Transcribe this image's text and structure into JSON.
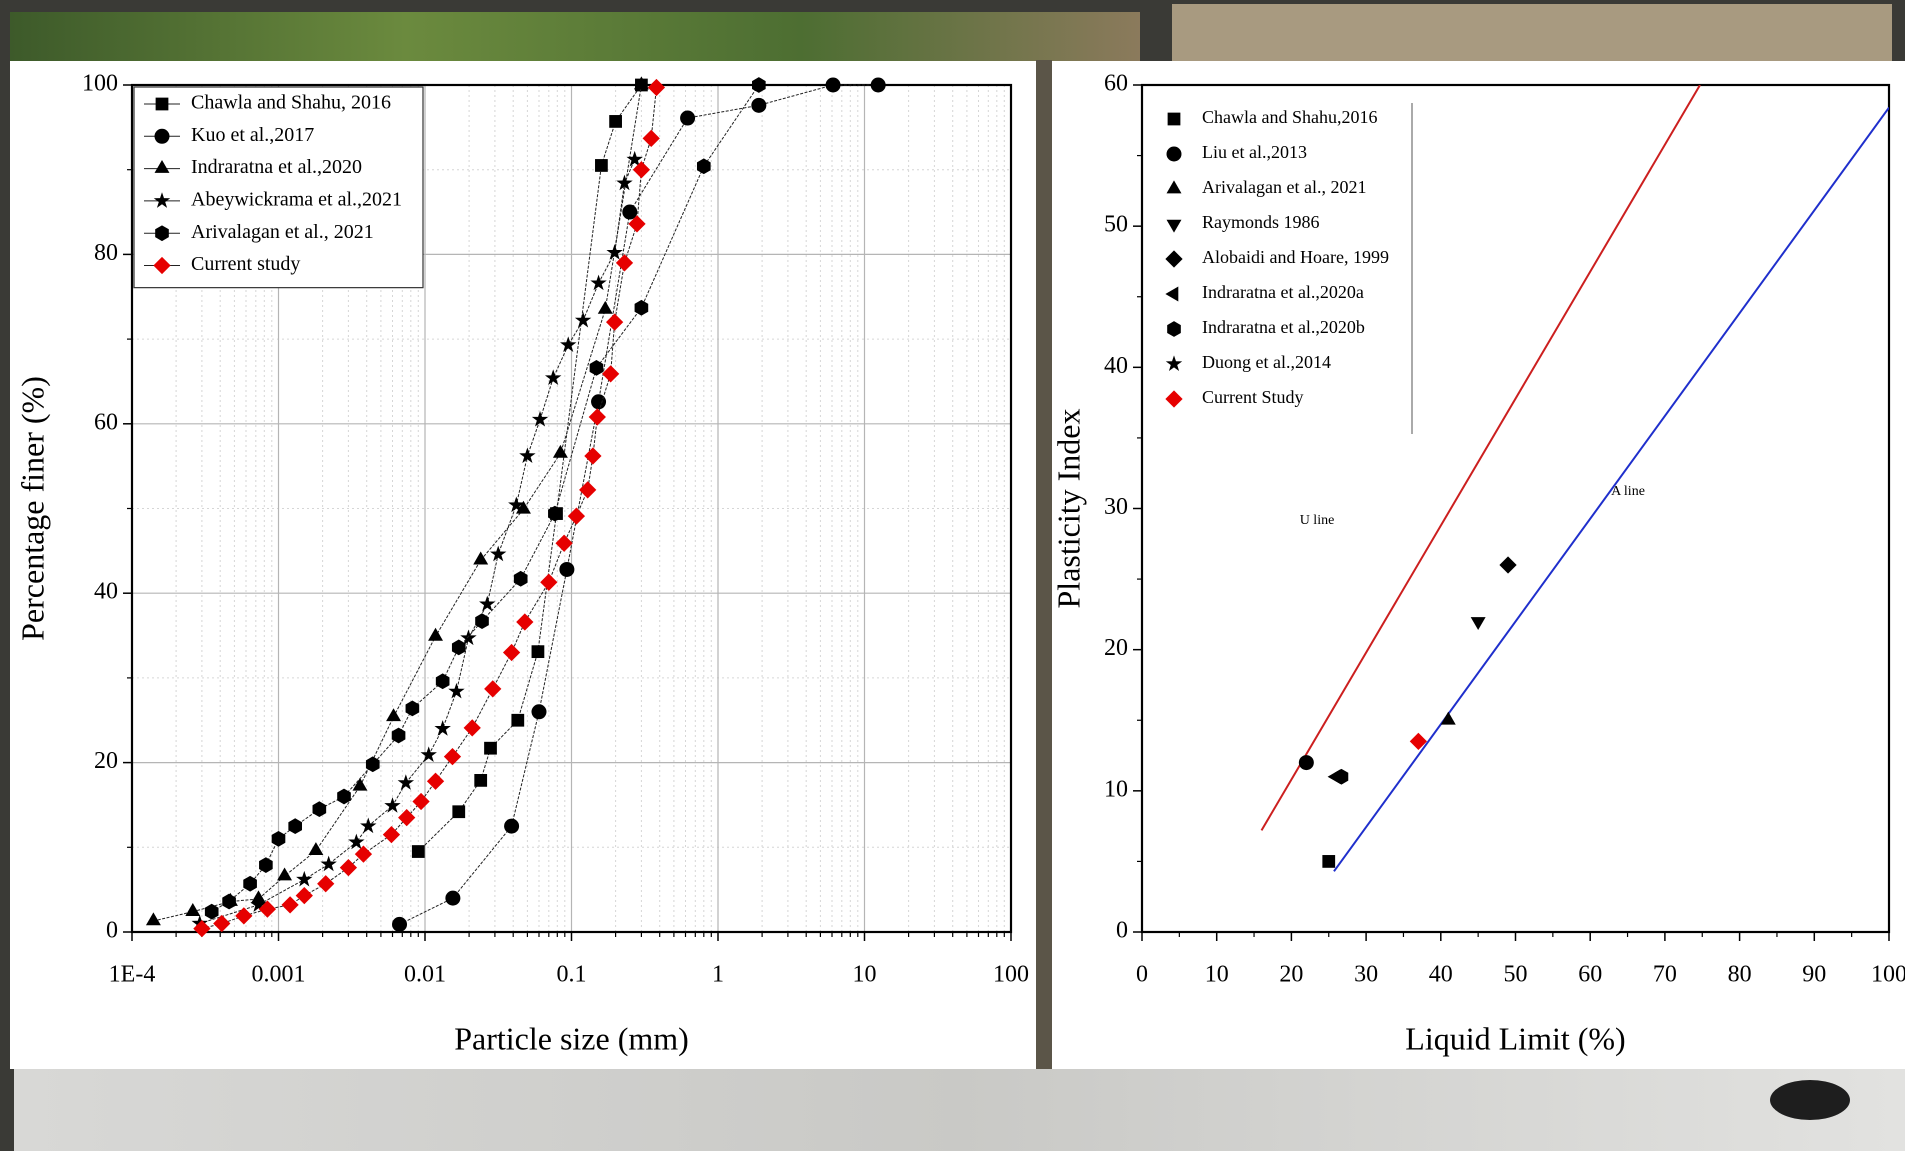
{
  "chart_data": [
    {
      "type": "line",
      "xscale": "log",
      "xlabel": "Particle size (mm)",
      "ylabel": "Percentage finer (%)",
      "xlim": [
        0.0001,
        100
      ],
      "ylim": [
        0,
        100
      ],
      "xticks": [
        {
          "value": 0.0001,
          "label": "1E-4"
        },
        0.001,
        0.01,
        0.1,
        1,
        10,
        100
      ],
      "yticks": [
        0,
        20,
        40,
        60,
        80,
        100
      ],
      "grid": true,
      "legend": "upper left",
      "legend_frame": true,
      "series": [
        {
          "name": "Chawla and Shahu, 2016",
          "marker": "square",
          "color": "#000000",
          "x": [
            0.009,
            0.017,
            0.024,
            0.028,
            0.043,
            0.059,
            0.079,
            0.16,
            0.2,
            0.3
          ],
          "values": [
            9.5,
            14.2,
            17.9,
            21.7,
            25,
            33.1,
            49.4,
            90.5,
            95.7,
            100
          ]
        },
        {
          "name": "Kuo et al.,2017",
          "marker": "circle",
          "color": "#000000",
          "x": [
            0.0067,
            0.0155,
            0.039,
            0.06,
            0.093,
            0.153,
            0.25,
            0.62,
            1.9,
            6.1,
            12.4
          ],
          "values": [
            0.9,
            4,
            12.5,
            26,
            42.8,
            62.6,
            85,
            96.1,
            97.6,
            100,
            100
          ]
        },
        {
          "name": "Indraratna et al.,2020",
          "marker": "triangle",
          "color": "#000000",
          "x": [
            0.00014,
            0.00026,
            0.00047,
            0.00073,
            0.0011,
            0.0018,
            0.0036,
            0.0061,
            0.0118,
            0.024,
            0.047,
            0.084,
            0.17,
            0.3
          ],
          "values": [
            1.3,
            2.4,
            3.6,
            3.9,
            6.6,
            9.6,
            17.2,
            25.4,
            34.9,
            43.9,
            49.9,
            56.5,
            73.5,
            100
          ]
        },
        {
          "name": "Abeywickrama et al.,2021",
          "marker": "star",
          "color": "#000000",
          "x": [
            0.00029,
            0.00073,
            0.0015,
            0.0022,
            0.0034,
            0.0041,
            0.006,
            0.0074,
            0.0106,
            0.0132,
            0.0164,
            0.0198,
            0.0266,
            0.0316,
            0.042,
            0.05,
            0.061,
            0.075,
            0.095,
            0.12,
            0.153,
            0.197,
            0.23,
            0.27
          ],
          "values": [
            1,
            3.2,
            6.2,
            8,
            10.6,
            12.5,
            14.9,
            17.6,
            20.9,
            24,
            28.4,
            34.7,
            38.7,
            44.6,
            50.4,
            56.2,
            60.5,
            65.4,
            69.3,
            72.2,
            76.6,
            80.2,
            88.4,
            91.2
          ]
        },
        {
          "name": "Arivalagan et al., 2021",
          "marker": "hexagon",
          "color": "#000000",
          "x": [
            0.00035,
            0.00046,
            0.00064,
            0.00082,
            0.001,
            0.0013,
            0.0019,
            0.0028,
            0.0044,
            0.0066,
            0.0082,
            0.0132,
            0.017,
            0.0245,
            0.045,
            0.077,
            0.148,
            0.3,
            0.8,
            1.9
          ],
          "values": [
            2.4,
            3.6,
            5.7,
            7.9,
            11,
            12.5,
            14.5,
            16,
            19.8,
            23.2,
            26.4,
            29.6,
            33.6,
            36.7,
            41.7,
            49.4,
            66.6,
            73.7,
            90.4,
            100
          ]
        },
        {
          "name": "Current study",
          "marker": "diamond",
          "color": "#e60000",
          "x": [
            0.0003,
            0.00041,
            0.00058,
            0.00084,
            0.0012,
            0.0015,
            0.0021,
            0.003,
            0.0038,
            0.0059,
            0.0075,
            0.0094,
            0.0118,
            0.0154,
            0.021,
            0.029,
            0.039,
            0.048,
            0.07,
            0.089,
            0.108,
            0.129,
            0.14,
            0.15,
            0.185,
            0.197,
            0.23,
            0.28,
            0.3,
            0.35,
            0.38
          ],
          "values": [
            0.4,
            1,
            1.9,
            2.7,
            3.2,
            4.3,
            5.7,
            7.6,
            9.2,
            11.5,
            13.5,
            15.4,
            17.8,
            20.7,
            24.1,
            28.7,
            33,
            36.6,
            41.3,
            45.9,
            49.1,
            52.2,
            56.2,
            60.8,
            65.9,
            72,
            79,
            83.6,
            90,
            93.7,
            99.7
          ]
        }
      ]
    },
    {
      "type": "scatter",
      "xlabel": "Liquid Limit (%)",
      "ylabel": "Plasticity Index",
      "xlim": [
        0,
        100
      ],
      "ylim": [
        0,
        60
      ],
      "xticks": [
        0,
        10,
        20,
        30,
        40,
        50,
        60,
        70,
        80,
        90,
        100
      ],
      "yticks": [
        0,
        10,
        20,
        30,
        40,
        50,
        60
      ],
      "grid": false,
      "legend": "upper left",
      "legend_frame": false,
      "series": [
        {
          "name": "Chawla and Shahu,2016",
          "marker": "square",
          "color": "#000000",
          "x": [
            25
          ],
          "values": [
            5
          ]
        },
        {
          "name": "Liu et al.,2013",
          "marker": "circle",
          "color": "#000000",
          "x": [
            22
          ],
          "values": [
            12
          ]
        },
        {
          "name": "Arivalagan et al., 2021",
          "marker": "triangle",
          "color": "#000000",
          "x": [
            41
          ],
          "values": [
            15
          ]
        },
        {
          "name": "Raymonds 1986",
          "marker": "triangle-down",
          "color": "#000000",
          "x": [
            45
          ],
          "values": [
            22
          ]
        },
        {
          "name": "Alobaidi and Hoare, 1999",
          "marker": "diamond",
          "color": "#000000",
          "x": [
            49
          ],
          "values": [
            26
          ]
        },
        {
          "name": "Indraratna et al.,2020a",
          "marker": "triangle-left",
          "color": "#000000",
          "x": [
            26
          ],
          "values": [
            11
          ]
        },
        {
          "name": "Indraratna et al.,2020b",
          "marker": "hexagon",
          "color": "#000000",
          "x": [
            26.7
          ],
          "values": [
            11
          ]
        },
        {
          "name": "Duong et al.,2014",
          "marker": "star",
          "color": "#000000",
          "x": [],
          "values": []
        },
        {
          "name": "Current Study",
          "marker": "diamond",
          "color": "#e60000",
          "x": [
            37
          ],
          "values": [
            13.5
          ]
        }
      ],
      "lines": [
        {
          "name": "U line",
          "color": "#cc1f1f",
          "x": [
            16,
            74.7
          ],
          "values": [
            7.2,
            60
          ]
        },
        {
          "name": "A line",
          "color": "#1f2fcc",
          "x": [
            25.7,
            100
          ],
          "values": [
            4.3,
            58.4
          ]
        }
      ]
    }
  ]
}
